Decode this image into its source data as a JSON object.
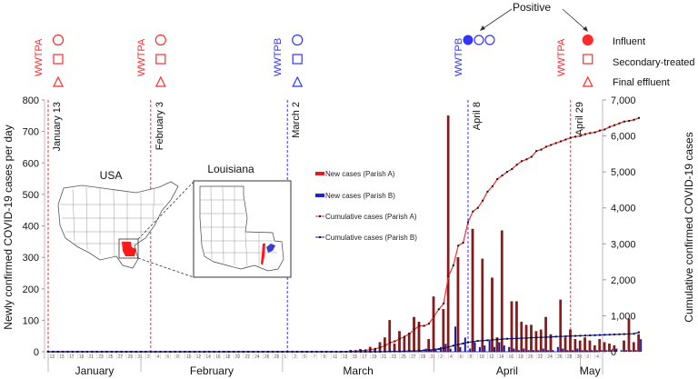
{
  "chart_data": {
    "type": "bar",
    "title": "",
    "ylabel": "Newly confirmed COVID-19 cases per day",
    "y2label": "Cumulative confirmed COVID-19 cases",
    "ylim": [
      0,
      800
    ],
    "y2lim": [
      0,
      7000
    ],
    "yticks": [
      "0",
      "100",
      "200",
      "300",
      "400",
      "500",
      "600",
      "700",
      "800"
    ],
    "y2ticks": [
      "0",
      "1,000",
      "2,000",
      "3,000",
      "4,000",
      "5,000",
      "6,000",
      "7,000"
    ],
    "x_start": "January 13",
    "x_end": "May 5",
    "months": [
      {
        "label": "January",
        "start_day": 0,
        "end_day": 19
      },
      {
        "label": "February",
        "start_day": 19,
        "end_day": 48
      },
      {
        "label": "March",
        "start_day": 48,
        "end_day": 79
      },
      {
        "label": "April",
        "start_day": 79,
        "end_day": 109
      },
      {
        "label": "May",
        "start_day": 109,
        "end_day": 113
      }
    ],
    "tick_labels": [
      "13",
      "15",
      "17",
      "19",
      "21",
      "23",
      "25",
      "27",
      "29",
      "31",
      "2",
      "4",
      "6",
      "8",
      "10",
      "12",
      "14",
      "16",
      "18",
      "20",
      "22",
      "24",
      "26",
      "28",
      "1",
      "3",
      "5",
      "7",
      "9",
      "11",
      "13",
      "15",
      "17",
      "19",
      "21",
      "23",
      "25",
      "27",
      "29",
      "31",
      "2",
      "4",
      "6",
      "8",
      "10",
      "12",
      "14",
      "16",
      "18",
      "20",
      "22",
      "24",
      "26",
      "28",
      "30",
      "2",
      "4"
    ],
    "legend": [
      {
        "label": "New cases (Parish A)",
        "color": "#e41a1c",
        "kind": "bar"
      },
      {
        "label": "New cases (Parish B)",
        "color": "#1f1fe0",
        "kind": "bar"
      },
      {
        "label": "Cumulative cases (Parish A)",
        "color": "#ff2a2a",
        "kind": "line"
      },
      {
        "label": "Cumulative cases (Parish B)",
        "color": "#1a1ab8",
        "kind": "line"
      }
    ],
    "series": [
      {
        "name": "New cases (Parish A)",
        "start_day": 62,
        "values": [
          5,
          2,
          8,
          3,
          15,
          10,
          30,
          45,
          100,
          25,
          65,
          45,
          60,
          110,
          95,
          0,
          40,
          175,
          0,
          135,
          750,
          0,
          300,
          0,
          0,
          390,
          0,
          295,
          0,
          235,
          45,
          385,
          0,
          160,
          160,
          95,
          85,
          85,
          65,
          70,
          110,
          55,
          0,
          165,
          45,
          70,
          40,
          35,
          45,
          35,
          20,
          40,
          30,
          25,
          20,
          0,
          35,
          105,
          30,
          55
        ]
      },
      {
        "name": "New cases (Parish B)",
        "start_day": 62,
        "values": [
          0,
          0,
          0,
          0,
          0,
          0,
          0,
          0,
          2,
          0,
          0,
          0,
          3,
          0,
          5,
          10,
          5,
          10,
          15,
          25,
          10,
          80,
          15,
          45,
          10,
          30,
          15,
          20,
          35,
          15,
          30,
          20,
          15,
          10,
          5,
          10,
          5,
          5,
          5,
          10,
          5,
          5,
          15,
          10,
          5,
          5,
          10,
          5,
          5,
          5,
          5,
          5,
          5,
          5,
          10,
          5,
          5,
          5,
          5,
          40
        ]
      },
      {
        "name": "Cumulative cases (Parish A)",
        "start_day": 62,
        "values": [
          10,
          20,
          30,
          40,
          60,
          80,
          120,
          170,
          250,
          290,
          360,
          420,
          500,
          620,
          720,
          720,
          780,
          980,
          1180,
          1340,
          2100,
          2400,
          2950,
          3030,
          3600,
          3900,
          4000,
          4200,
          4450,
          4600,
          4800,
          4900,
          5000,
          5080,
          5200,
          5300,
          5350,
          5420,
          5580,
          5620,
          5700,
          5750,
          5800,
          5850,
          5900,
          5950,
          5980,
          6000,
          6050,
          6080,
          6100,
          6150,
          6180,
          6250,
          6300,
          6350,
          6400,
          6420,
          6450,
          6500
        ]
      },
      {
        "name": "Cumulative cases (Parish B)",
        "start_day": 62,
        "values": [
          0,
          0,
          0,
          0,
          0,
          0,
          0,
          5,
          10,
          10,
          10,
          15,
          20,
          25,
          30,
          40,
          50,
          60,
          75,
          100,
          130,
          170,
          200,
          230,
          260,
          280,
          300,
          310,
          320,
          330,
          340,
          350,
          360,
          365,
          370,
          375,
          380,
          390,
          395,
          400,
          405,
          410,
          420,
          425,
          430,
          435,
          440,
          445,
          450,
          455,
          460,
          465,
          470,
          475,
          480,
          485,
          490,
          495,
          500,
          540
        ]
      }
    ],
    "event_lines": [
      {
        "label": "January 13",
        "day": 0,
        "color": "#ff2a2a"
      },
      {
        "label": "February 3",
        "day": 21,
        "color": "#ff2a2a"
      },
      {
        "label": "March 2",
        "day": 49,
        "color": "#3333ff"
      },
      {
        "label": "April 8",
        "day": 86,
        "color": "#3333ff"
      },
      {
        "label": "April 29",
        "day": 107,
        "color": "#ff2a2a"
      }
    ]
  },
  "samples": [
    {
      "plant": "WWTPA",
      "color": "#ff2a2a",
      "day": 0,
      "influent": "negative",
      "secondary": "negative",
      "final": "negative"
    },
    {
      "plant": "WWTPA",
      "color": "#ff2a2a",
      "day": 21,
      "influent": "negative",
      "secondary": "negative",
      "final": "negative"
    },
    {
      "plant": "WWTPB",
      "color": "#3333ff",
      "day": 49,
      "influent": "negative",
      "secondary": "negative",
      "final": "negative"
    },
    {
      "plant": "WWTPB",
      "color": "#3333ff",
      "day": 86,
      "influent": "positive",
      "secondary": "negative",
      "final": "negative"
    },
    {
      "plant": "WWTPA",
      "color": "#ff2a2a",
      "day": 107,
      "influent": "positive",
      "secondary": "negative",
      "final": "negative"
    }
  ],
  "annotation": {
    "positive_label": "Positive"
  },
  "sample_legend": [
    {
      "label": "Influent",
      "shape": "filled-circle"
    },
    {
      "label": "Secondary-treated",
      "shape": "square"
    },
    {
      "label": "Final effluent",
      "shape": "triangle"
    }
  ],
  "maps": {
    "usa_label": "USA",
    "state_label": "Louisiana"
  }
}
